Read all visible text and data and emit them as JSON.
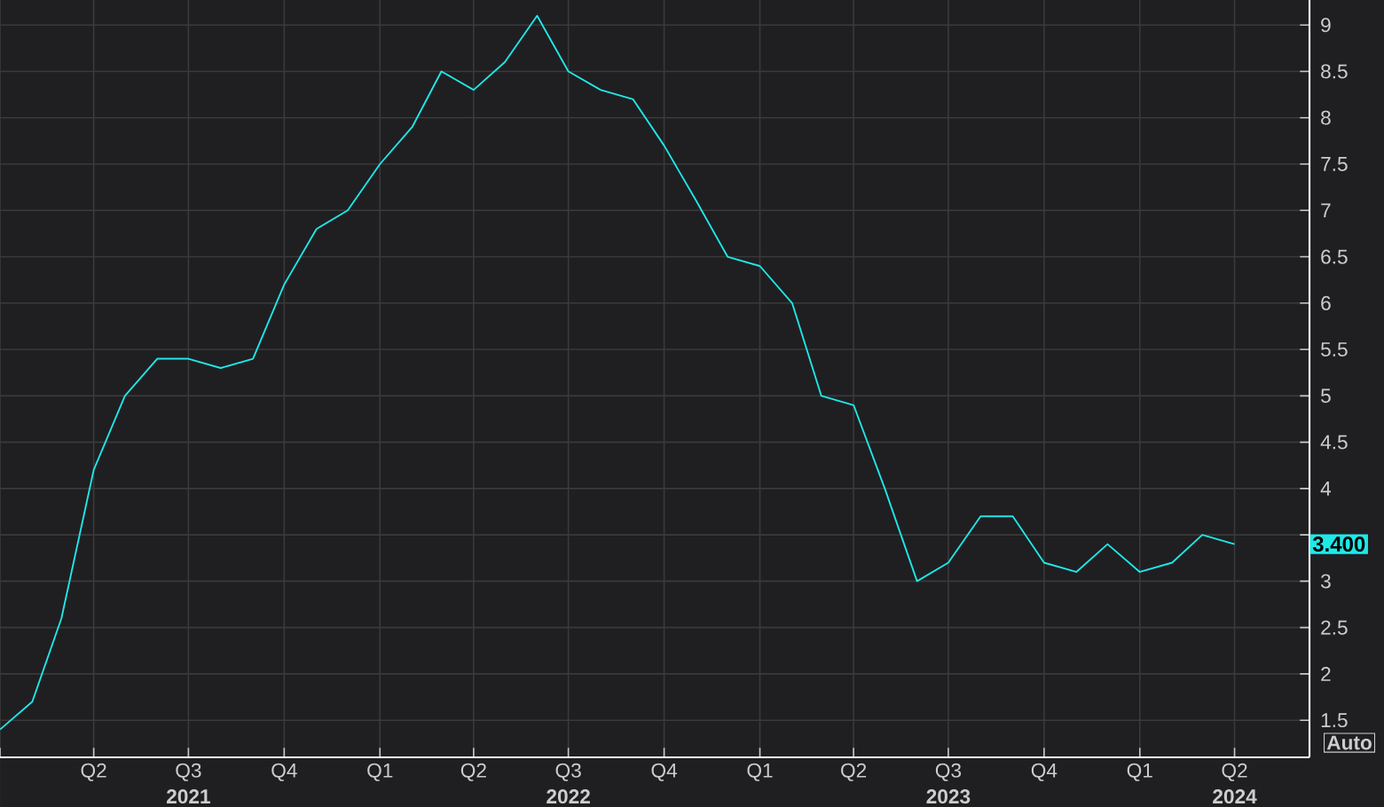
{
  "chart_data": {
    "type": "line",
    "x": [
      "2021-01",
      "2021-02",
      "2021-03",
      "2021-04",
      "2021-05",
      "2021-06",
      "2021-07",
      "2021-08",
      "2021-09",
      "2021-10",
      "2021-11",
      "2021-12",
      "2022-01",
      "2022-02",
      "2022-03",
      "2022-04",
      "2022-05",
      "2022-06",
      "2022-07",
      "2022-08",
      "2022-09",
      "2022-10",
      "2022-11",
      "2022-12",
      "2023-01",
      "2023-02",
      "2023-03",
      "2023-04",
      "2023-05",
      "2023-06",
      "2023-07",
      "2023-08",
      "2023-09",
      "2023-10",
      "2023-11",
      "2023-12",
      "2024-01",
      "2024-02",
      "2024-03",
      "2024-04"
    ],
    "series": [
      {
        "color": "#1fe8e8",
        "values": [
          1.4,
          1.7,
          2.6,
          4.2,
          5.0,
          5.4,
          5.4,
          5.3,
          5.4,
          6.2,
          6.8,
          7.0,
          7.5,
          7.9,
          8.5,
          8.3,
          8.6,
          9.1,
          8.5,
          8.3,
          8.2,
          7.7,
          7.1,
          6.5,
          6.4,
          6.0,
          5.0,
          4.9,
          4.0,
          3.0,
          3.2,
          3.7,
          3.7,
          3.2,
          3.1,
          3.4,
          3.1,
          3.2,
          3.5,
          3.4
        ]
      }
    ],
    "xlim": [
      "2021-01-01",
      "2024-06-12"
    ],
    "ylim": [
      1.1,
      9.27
    ],
    "xticks": [
      {
        "value": "2021-01",
        "label": null
      },
      {
        "value": "2021-04",
        "label": "Q2"
      },
      {
        "value": "2021-07",
        "label": "Q3"
      },
      {
        "value": "2021-10",
        "label": "Q4"
      },
      {
        "value": "2022-01",
        "label": "Q1"
      },
      {
        "value": "2022-04",
        "label": "Q2"
      },
      {
        "value": "2022-07",
        "label": "Q3"
      },
      {
        "value": "2022-10",
        "label": "Q4"
      },
      {
        "value": "2023-01",
        "label": "Q1"
      },
      {
        "value": "2023-04",
        "label": "Q2"
      },
      {
        "value": "2023-07",
        "label": "Q3"
      },
      {
        "value": "2023-10",
        "label": "Q4"
      },
      {
        "value": "2024-01",
        "label": "Q1"
      },
      {
        "value": "2024-04",
        "label": "Q2"
      }
    ],
    "yticks": [
      1.5,
      2,
      2.5,
      3,
      {
        "value": 3.5,
        "label": null
      },
      4,
      4.5,
      5,
      5.5,
      6,
      6.5,
      7,
      7.5,
      8,
      8.5,
      9
    ],
    "grid": true,
    "x2lim": [
      "2021-01-01",
      "2024-06-12"
    ],
    "x2ticks": [
      {
        "value": "2021-07",
        "label": "2021"
      },
      {
        "value": "2022-07",
        "label": "2022"
      },
      {
        "value": "2023-07",
        "label": "2023"
      },
      {
        "value": "2024-04",
        "label": "2024"
      }
    ],
    "annotations": [
      "3.400",
      "Auto"
    ]
  }
}
